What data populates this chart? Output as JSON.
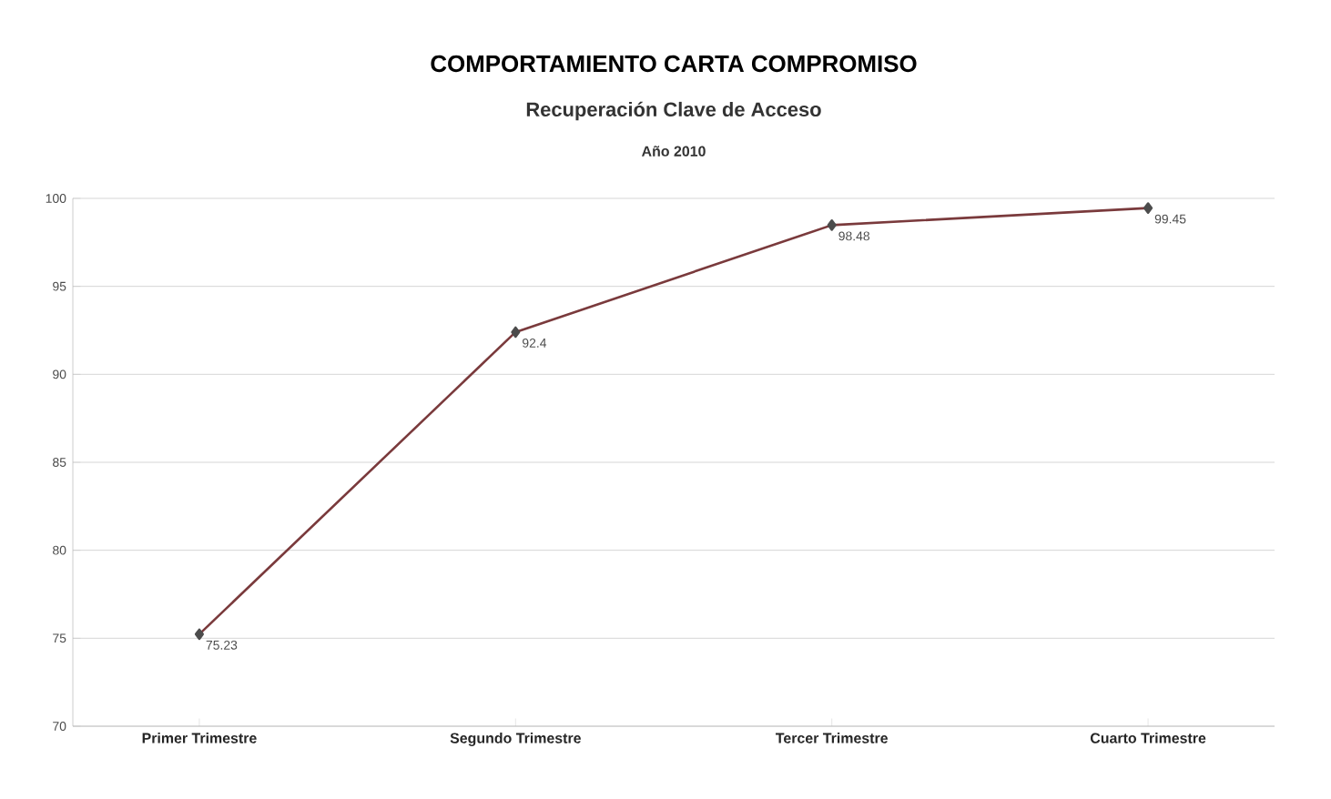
{
  "chart_data": {
    "type": "line",
    "title": "COMPORTAMIENTO CARTA COMPROMISO",
    "subtitle": "Recuperación Clave de Acceso",
    "annotations": [
      "Año 2010"
    ],
    "categories": [
      "Primer Trimestre",
      "Segundo Trimestre",
      "Tercer Trimestre",
      "Cuarto Trimestre"
    ],
    "values": [
      75.23,
      92.4,
      98.48,
      99.45
    ],
    "color": "#7a3a3c",
    "marker": "diamond",
    "line_style": "solid",
    "data_labels": true,
    "ylim": [
      70,
      100
    ],
    "yticks": [
      70,
      75,
      80,
      85,
      90,
      95,
      100
    ],
    "grid": "y"
  }
}
